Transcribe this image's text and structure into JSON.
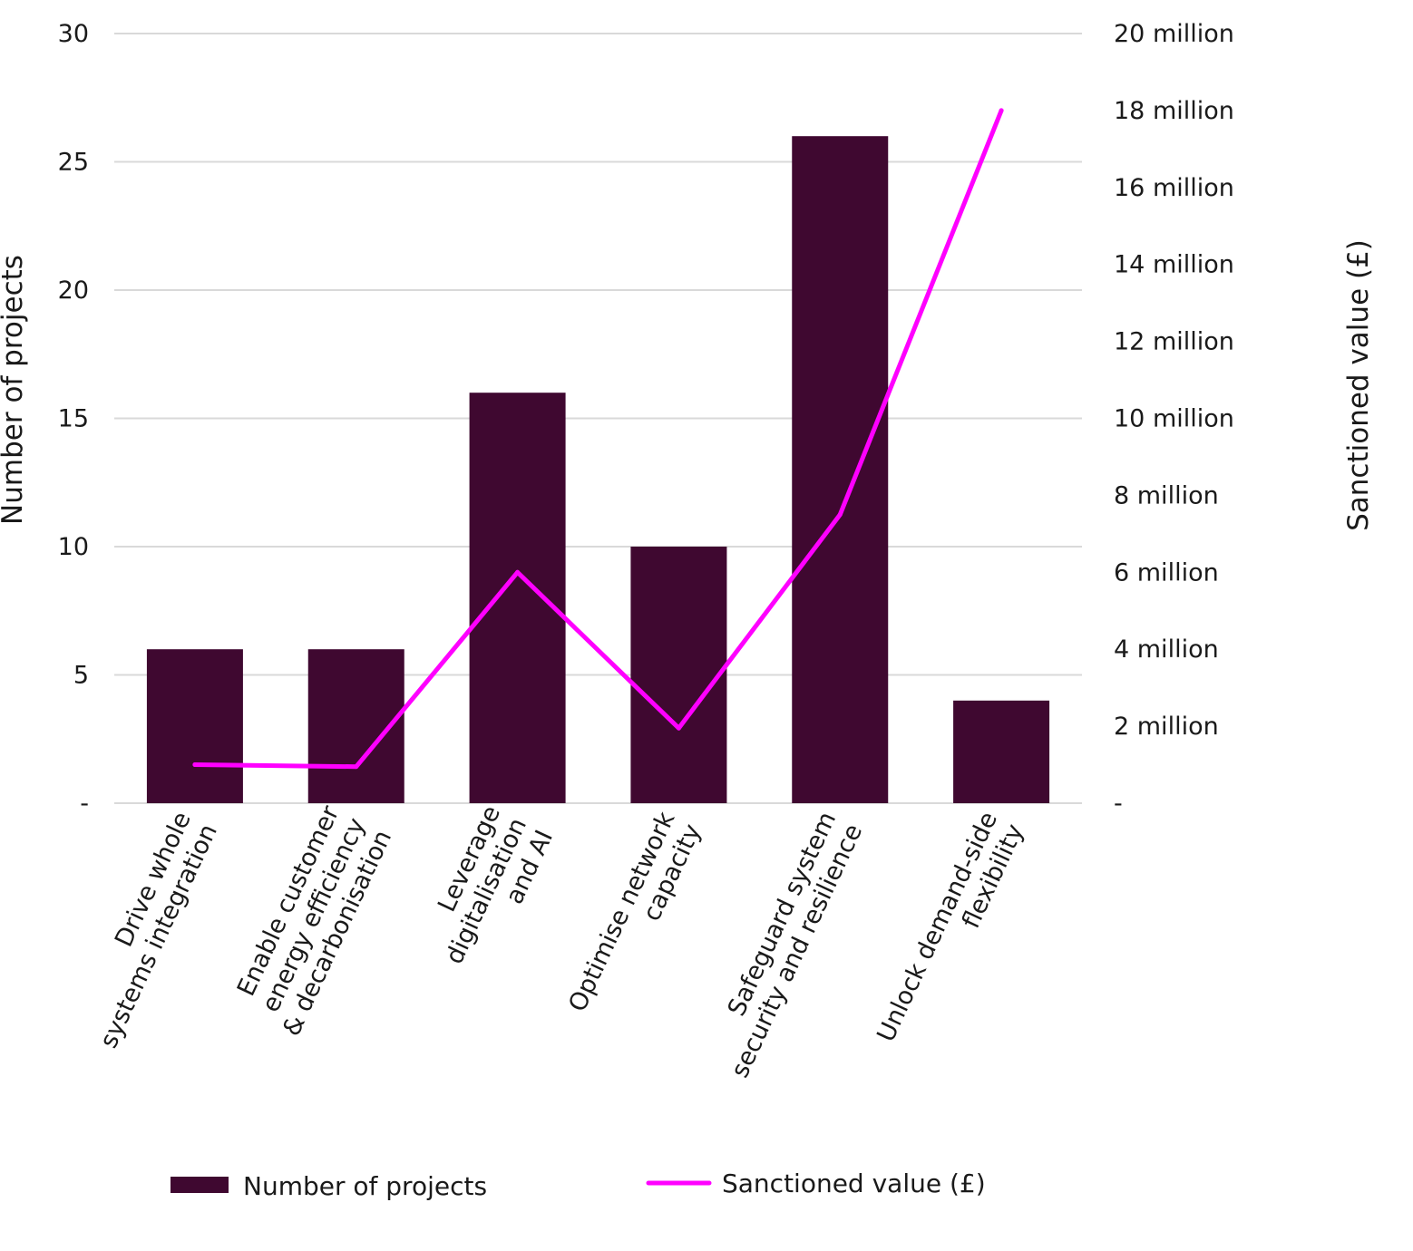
{
  "chart_data": {
    "type": "bar",
    "categories": [
      "Drive whole systems integration",
      "Enable customer energy efficiency & decarbonisation",
      "Leverage digitalisation and AI",
      "Optimise network capacity",
      "Safeguard system security and resilience",
      "Unlock demand-side flexibility"
    ],
    "category_lines": [
      [
        "Drive whole",
        "systems integration"
      ],
      [
        "Enable customer",
        "energy efficiency",
        "& decarbonisation"
      ],
      [
        "Leverage",
        "digitalisation",
        "and AI"
      ],
      [
        "Optimise network",
        "capacity"
      ],
      [
        "Safeguard system",
        "security and resilience"
      ],
      [
        "Unlock demand-side",
        "flexibility"
      ]
    ],
    "series": [
      {
        "name": "Number of projects",
        "type": "bar",
        "axis": "left",
        "color": "#3f0830",
        "values": [
          6,
          6,
          16,
          10,
          26,
          4
        ]
      },
      {
        "name": "Sanctioned value (£)",
        "type": "line",
        "axis": "right",
        "color": "#ff00ff",
        "values": [
          1000000,
          950000,
          6000000,
          1950000,
          7500000,
          18000000
        ]
      }
    ],
    "ylabel": "Number of projects",
    "ylabel_right": "Sanctioned value (£)",
    "ylim": [
      0,
      30
    ],
    "ylim_right": [
      0,
      20000000
    ],
    "yticks": [
      "-",
      "5",
      "10",
      "15",
      "20",
      "25",
      "30"
    ],
    "yticks_right": [
      "-",
      "2 million",
      "4 million",
      "6 million",
      "8 million",
      "10 million",
      "12 million",
      "14 million",
      "16 million",
      "18 million",
      "20 million"
    ],
    "grid": true,
    "legend": "bottom"
  }
}
